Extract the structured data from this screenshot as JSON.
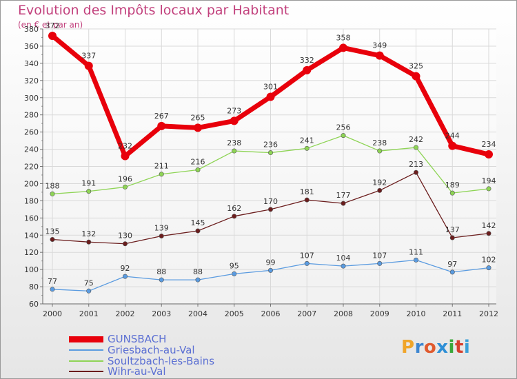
{
  "title": "Evolution des Impôts locaux par Habitant",
  "subtitle": "(en € et par an)",
  "logo": {
    "text": "Proxiti",
    "letter_colors": [
      "#f0a52a",
      "#3d86d1",
      "#e05a2e",
      "#2e8fd6",
      "#3aa73a",
      "#d6402d",
      "#3aa0d8"
    ]
  },
  "chart_data": {
    "type": "line",
    "title": "Evolution des Impôts locaux par Habitant",
    "subtitle": "(en € et par an)",
    "xlabel": "",
    "ylabel": "",
    "categories": [
      "2000",
      "2001",
      "2002",
      "2003",
      "2004",
      "2005",
      "2006",
      "2007",
      "2008",
      "2009",
      "2010",
      "2011",
      "2012"
    ],
    "ylim": [
      60,
      380
    ],
    "ystep": 20,
    "grid": true,
    "legend_position": "bottom-left",
    "series": [
      {
        "name": "GUNSBACH",
        "color": "#e8000b",
        "style": "thick",
        "values": [
          372,
          337,
          232,
          267,
          265,
          273,
          301,
          332,
          358,
          349,
          325,
          244,
          234
        ]
      },
      {
        "name": "Griesbach-au-Val",
        "color": "#5a9be0",
        "style": "thin",
        "values": [
          77,
          75,
          92,
          88,
          88,
          95,
          99,
          107,
          104,
          107,
          111,
          97,
          102
        ]
      },
      {
        "name": "Soultzbach-les-Bains",
        "color": "#8ed455",
        "style": "thin",
        "values": [
          188,
          191,
          196,
          211,
          216,
          238,
          236,
          241,
          256,
          238,
          242,
          189,
          194
        ]
      },
      {
        "name": "Wihr-au-Val",
        "color": "#6b1d1d",
        "style": "thin",
        "values": [
          135,
          132,
          130,
          139,
          145,
          162,
          170,
          181,
          177,
          192,
          213,
          137,
          142
        ]
      }
    ]
  }
}
